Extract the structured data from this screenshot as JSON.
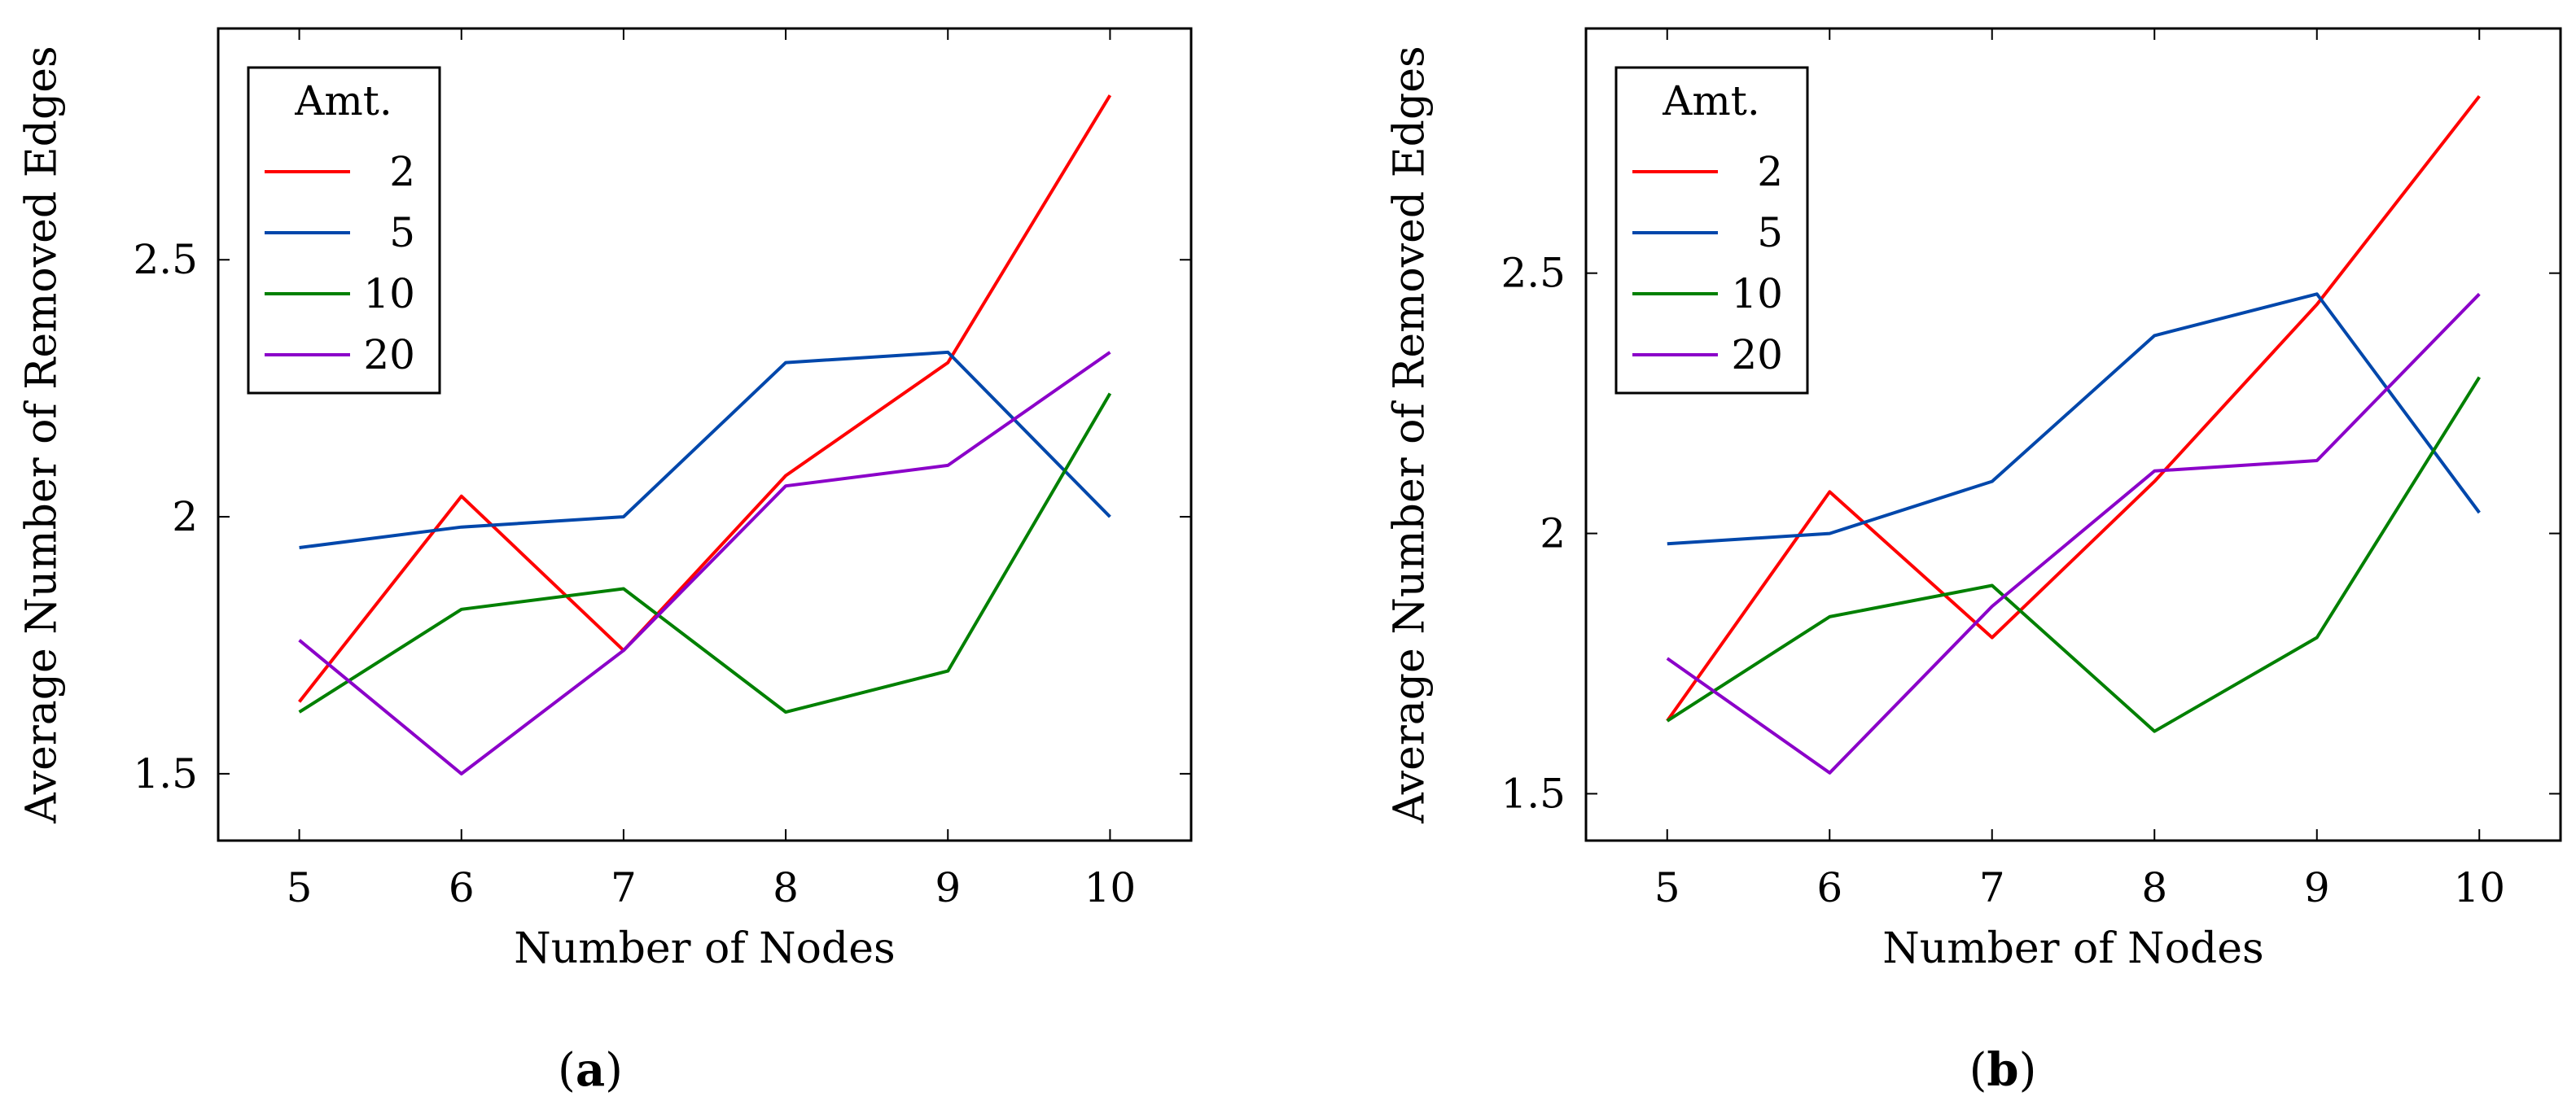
{
  "chart_data": [
    {
      "type": "line",
      "panel": "(a)",
      "caption_letter": "a",
      "x": [
        5,
        6,
        7,
        8,
        9,
        10
      ],
      "xlabel": "Number of Nodes",
      "ylabel": "Average Number of Removed Edges",
      "xlim": [
        4.5,
        10.5
      ],
      "ylim": [
        1.37,
        2.95
      ],
      "xticks": [
        "5",
        "6",
        "7",
        "8",
        "9",
        "10"
      ],
      "yticks": [
        {
          "value": 1.5,
          "label": "1.5"
        },
        {
          "value": 2,
          "label": "2"
        },
        {
          "value": 2.5,
          "label": "2.5"
        }
      ],
      "legend": {
        "title": "Amt.",
        "position": "top-left"
      },
      "series": [
        {
          "name": "2",
          "color": "#ff0000",
          "values": [
            1.64,
            2.04,
            1.74,
            2.08,
            2.3,
            2.82
          ]
        },
        {
          "name": "5",
          "color": "#0047ab",
          "values": [
            1.94,
            1.98,
            2.0,
            2.3,
            2.32,
            2.0
          ]
        },
        {
          "name": "10",
          "color": "#008000",
          "values": [
            1.62,
            1.82,
            1.86,
            1.62,
            1.7,
            2.24
          ]
        },
        {
          "name": "20",
          "color": "#8b00c9",
          "values": [
            1.76,
            1.5,
            1.74,
            2.06,
            2.1,
            2.32
          ]
        }
      ]
    },
    {
      "type": "line",
      "panel": "(b)",
      "caption_letter": "b",
      "x": [
        5,
        6,
        7,
        8,
        9,
        10
      ],
      "xlabel": "Number of Nodes",
      "ylabel": "Average Number of Removed Edges",
      "xlim": [
        4.5,
        10.5
      ],
      "ylim": [
        1.41,
        2.97
      ],
      "xticks": [
        "5",
        "6",
        "7",
        "8",
        "9",
        "10"
      ],
      "yticks": [
        {
          "value": 1.5,
          "label": "1.5"
        },
        {
          "value": 2,
          "label": "2"
        },
        {
          "value": 2.5,
          "label": "2.5"
        }
      ],
      "legend": {
        "title": "Amt.",
        "position": "top-left"
      },
      "series": [
        {
          "name": "2",
          "color": "#ff0000",
          "values": [
            1.64,
            2.08,
            1.8,
            2.1,
            2.44,
            2.84
          ]
        },
        {
          "name": "5",
          "color": "#0047ab",
          "values": [
            1.98,
            2.0,
            2.1,
            2.38,
            2.46,
            2.04
          ]
        },
        {
          "name": "10",
          "color": "#008000",
          "values": [
            1.64,
            1.84,
            1.9,
            1.62,
            1.8,
            2.3
          ]
        },
        {
          "name": "20",
          "color": "#8b00c9",
          "values": [
            1.76,
            1.54,
            1.86,
            2.12,
            2.14,
            2.46
          ]
        }
      ]
    }
  ]
}
